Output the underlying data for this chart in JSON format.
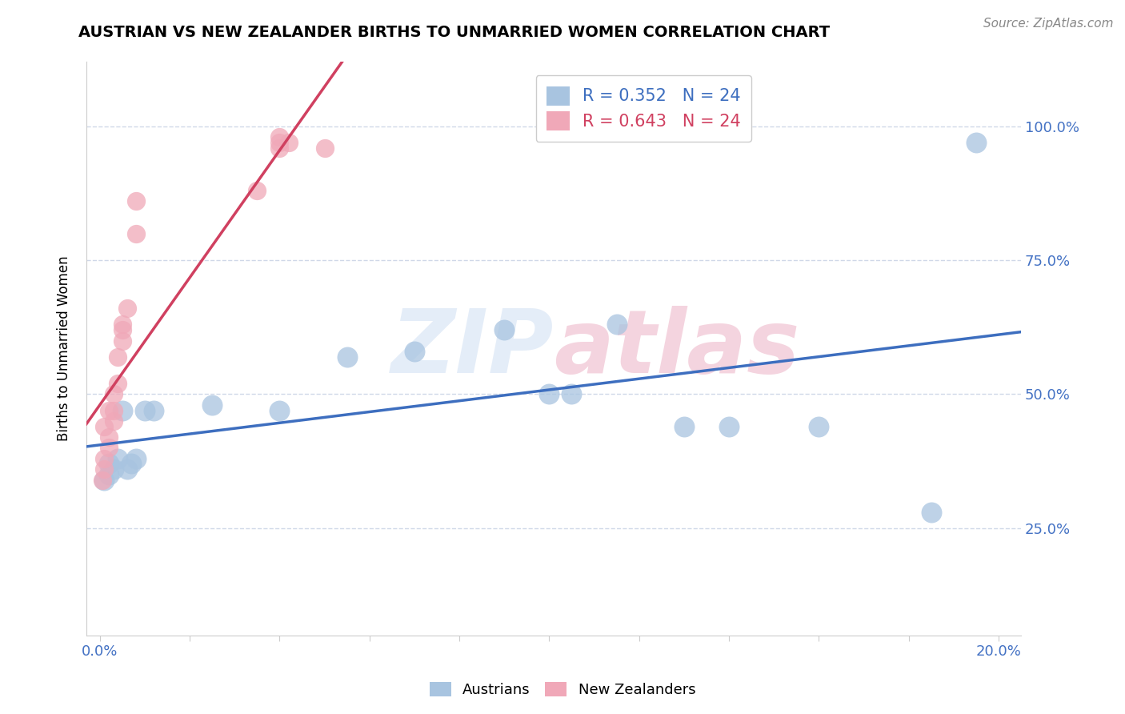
{
  "title": "AUSTRIAN VS NEW ZEALANDER BIRTHS TO UNMARRIED WOMEN CORRELATION CHART",
  "source": "Source: ZipAtlas.com",
  "ylabel": "Births to Unmarried Women",
  "xlim": [
    -0.003,
    0.205
  ],
  "ylim": [
    0.05,
    1.12
  ],
  "y_ticks": [
    0.25,
    0.5,
    0.75,
    1.0
  ],
  "y_tick_labels": [
    "25.0%",
    "50.0%",
    "75.0%",
    "100.0%"
  ],
  "x_ticks": [
    0.0,
    0.02,
    0.04,
    0.06,
    0.08,
    0.1,
    0.12,
    0.14,
    0.16,
    0.18,
    0.2
  ],
  "blue_label": "Austrians",
  "pink_label": "New Zealanders",
  "R_blue": 0.352,
  "N_blue": 24,
  "R_pink": 0.643,
  "N_pink": 24,
  "blue_color": "#a8c4e0",
  "pink_color": "#f0a8b8",
  "blue_line_color": "#3d6ebf",
  "pink_line_color": "#d04060",
  "watermark": "ZIPatlas",
  "watermark_blue": "#c5d8f0",
  "watermark_pink": "#e8a0b8",
  "blue_x": [
    0.001,
    0.002,
    0.002,
    0.003,
    0.004,
    0.005,
    0.006,
    0.007,
    0.008,
    0.01,
    0.012,
    0.025,
    0.04,
    0.055,
    0.07,
    0.09,
    0.1,
    0.105,
    0.115,
    0.13,
    0.14,
    0.16,
    0.185,
    0.195
  ],
  "blue_y": [
    0.34,
    0.35,
    0.37,
    0.36,
    0.38,
    0.47,
    0.36,
    0.37,
    0.38,
    0.47,
    0.47,
    0.48,
    0.47,
    0.57,
    0.58,
    0.62,
    0.5,
    0.5,
    0.63,
    0.44,
    0.44,
    0.44,
    0.28,
    0.97
  ],
  "pink_x": [
    0.0005,
    0.001,
    0.001,
    0.001,
    0.002,
    0.002,
    0.002,
    0.003,
    0.003,
    0.003,
    0.004,
    0.004,
    0.005,
    0.005,
    0.005,
    0.006,
    0.008,
    0.008,
    0.035,
    0.04,
    0.04,
    0.04,
    0.042,
    0.05
  ],
  "pink_y": [
    0.34,
    0.36,
    0.38,
    0.44,
    0.4,
    0.42,
    0.47,
    0.45,
    0.47,
    0.5,
    0.52,
    0.57,
    0.6,
    0.62,
    0.63,
    0.66,
    0.8,
    0.86,
    0.88,
    0.96,
    0.97,
    0.98,
    0.97,
    0.96
  ],
  "grid_color": "#d0d8e8",
  "spine_color": "#cccccc",
  "tick_color": "#4472c4"
}
